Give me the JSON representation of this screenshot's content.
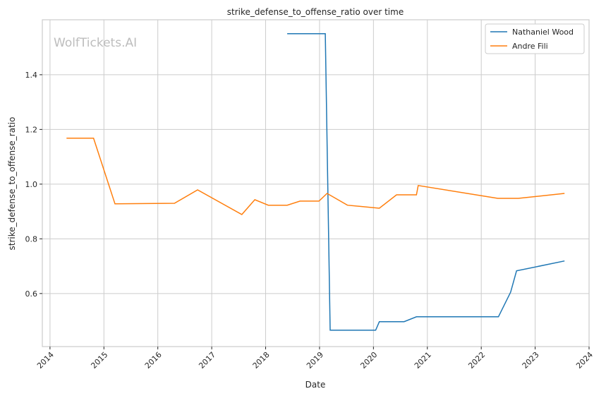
{
  "watermark": "WolfTickets.AI",
  "chart_data": {
    "type": "line",
    "title": "strike_defense_to_offense_ratio over time",
    "xlabel": "Date",
    "ylabel": "strike_defense_to_offense_ratio",
    "xlim": [
      "2013-11-10",
      "2024-01-01"
    ],
    "ylim": [
      0.406,
      1.601
    ],
    "x_ticks": [
      "2014",
      "2015",
      "2016",
      "2017",
      "2018",
      "2019",
      "2020",
      "2021",
      "2022",
      "2023",
      "2024"
    ],
    "y_ticks": [
      "0.6",
      "0.8",
      "1.0",
      "1.2",
      "1.4"
    ],
    "grid": true,
    "legend_position": "top-right",
    "series": [
      {
        "name": "Nathaniel Wood",
        "color": "#1f77b4",
        "x": [
          "2018-05-27",
          "2019-02-09",
          "2019-03-14",
          "2020-01-16",
          "2020-02-10",
          "2020-07-27",
          "2020-10-19",
          "2022-04-27",
          "2022-07-19",
          "2022-08-28",
          "2023-07-19"
        ],
        "y": [
          1.55,
          1.55,
          0.466,
          0.466,
          0.497,
          0.497,
          0.515,
          0.515,
          0.605,
          0.683,
          0.719
        ]
      },
      {
        "name": "Andre Fili",
        "color": "#ff7f0e",
        "x": [
          "2014-04-23",
          "2014-10-23",
          "2015-03-17",
          "2016-04-23",
          "2016-09-27",
          "2017-07-24",
          "2017-10-20",
          "2018-01-19",
          "2018-05-27",
          "2018-08-22",
          "2018-12-28",
          "2019-02-21",
          "2019-07-09",
          "2020-02-10",
          "2020-06-06",
          "2020-10-19",
          "2020-10-31",
          "2022-04-23",
          "2022-09-09",
          "2023-07-19"
        ],
        "y": [
          1.168,
          1.168,
          0.928,
          0.93,
          0.979,
          0.889,
          0.943,
          0.923,
          0.923,
          0.938,
          0.938,
          0.966,
          0.923,
          0.912,
          0.961,
          0.961,
          0.995,
          0.948,
          0.948,
          0.966
        ]
      }
    ]
  }
}
